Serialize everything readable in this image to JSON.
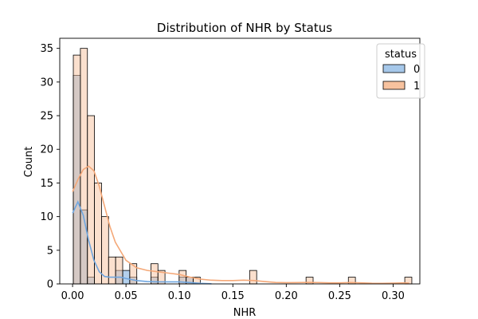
{
  "chart_data": {
    "type": "bar",
    "title": "Distribution of NHR by Status",
    "xlabel": "NHR",
    "ylabel": "Count",
    "xlim": [
      -0.012,
      0.325
    ],
    "ylim": [
      0,
      36.5
    ],
    "xticks": [
      0.0,
      0.05,
      0.1,
      0.15,
      0.2,
      0.25,
      0.3
    ],
    "xtick_labels": [
      "0.00",
      "0.05",
      "0.10",
      "0.15",
      "0.20",
      "0.25",
      "0.30"
    ],
    "yticks": [
      0,
      5,
      10,
      15,
      20,
      25,
      30,
      35
    ],
    "ytick_labels": [
      "0",
      "5",
      "10",
      "15",
      "20",
      "25",
      "30",
      "35"
    ],
    "bin_width": 0.0066,
    "legend": {
      "title": "status",
      "position": "upper right"
    },
    "series": [
      {
        "name": "0",
        "color": "#a6c8ea",
        "kde_color": "#6fa6e0",
        "bins": [
          {
            "x": 0.0007,
            "count": 31
          },
          {
            "x": 0.0073,
            "count": 11
          },
          {
            "x": 0.0139,
            "count": 1
          },
          {
            "x": 0.0403,
            "count": 2
          },
          {
            "x": 0.0469,
            "count": 2
          },
          {
            "x": 0.0535,
            "count": 1
          },
          {
            "x": 0.0733,
            "count": 1
          },
          {
            "x": 0.0997,
            "count": 1
          },
          {
            "x": 0.1063,
            "count": 1
          }
        ],
        "kde": [
          [
            0.0,
            10.5
          ],
          [
            0.005,
            12.2
          ],
          [
            0.01,
            10.2
          ],
          [
            0.015,
            6.5
          ],
          [
            0.02,
            3.5
          ],
          [
            0.025,
            1.8
          ],
          [
            0.03,
            1.1
          ],
          [
            0.035,
            1.0
          ],
          [
            0.04,
            1.0
          ],
          [
            0.045,
            1.0
          ],
          [
            0.05,
            0.8
          ],
          [
            0.06,
            0.5
          ],
          [
            0.07,
            0.35
          ],
          [
            0.08,
            0.3
          ],
          [
            0.09,
            0.3
          ],
          [
            0.1,
            0.3
          ],
          [
            0.11,
            0.2
          ],
          [
            0.12,
            0.08
          ],
          [
            0.13,
            0.02
          ]
        ]
      },
      {
        "name": "1",
        "color": "#f7c29e",
        "kde_color": "#f4a878",
        "bins": [
          {
            "x": 0.0007,
            "count": 34
          },
          {
            "x": 0.0073,
            "count": 35
          },
          {
            "x": 0.0139,
            "count": 25
          },
          {
            "x": 0.0205,
            "count": 15
          },
          {
            "x": 0.0271,
            "count": 10
          },
          {
            "x": 0.0337,
            "count": 4
          },
          {
            "x": 0.0403,
            "count": 4
          },
          {
            "x": 0.0535,
            "count": 3
          },
          {
            "x": 0.0733,
            "count": 3
          },
          {
            "x": 0.0799,
            "count": 2
          },
          {
            "x": 0.0997,
            "count": 2
          },
          {
            "x": 0.1063,
            "count": 1
          },
          {
            "x": 0.1129,
            "count": 1
          },
          {
            "x": 0.1657,
            "count": 2
          },
          {
            "x": 0.2185,
            "count": 1
          },
          {
            "x": 0.2581,
            "count": 1
          },
          {
            "x": 0.3109,
            "count": 1
          }
        ],
        "kde": [
          [
            0.0,
            13.7
          ],
          [
            0.005,
            15.5
          ],
          [
            0.01,
            17.0
          ],
          [
            0.015,
            17.5
          ],
          [
            0.02,
            16.8
          ],
          [
            0.025,
            14.5
          ],
          [
            0.03,
            11.5
          ],
          [
            0.035,
            8.5
          ],
          [
            0.04,
            6.2
          ],
          [
            0.05,
            3.5
          ],
          [
            0.06,
            2.4
          ],
          [
            0.07,
            2.0
          ],
          [
            0.08,
            1.8
          ],
          [
            0.09,
            1.6
          ],
          [
            0.1,
            1.4
          ],
          [
            0.11,
            1.0
          ],
          [
            0.12,
            0.7
          ],
          [
            0.13,
            0.55
          ],
          [
            0.14,
            0.5
          ],
          [
            0.15,
            0.5
          ],
          [
            0.16,
            0.55
          ],
          [
            0.17,
            0.5
          ],
          [
            0.18,
            0.35
          ],
          [
            0.19,
            0.22
          ],
          [
            0.2,
            0.18
          ],
          [
            0.21,
            0.2
          ],
          [
            0.22,
            0.22
          ],
          [
            0.23,
            0.2
          ],
          [
            0.24,
            0.15
          ],
          [
            0.25,
            0.15
          ],
          [
            0.26,
            0.2
          ],
          [
            0.27,
            0.16
          ],
          [
            0.28,
            0.1
          ],
          [
            0.29,
            0.08
          ],
          [
            0.3,
            0.12
          ],
          [
            0.31,
            0.15
          ],
          [
            0.315,
            0.12
          ]
        ]
      }
    ]
  }
}
